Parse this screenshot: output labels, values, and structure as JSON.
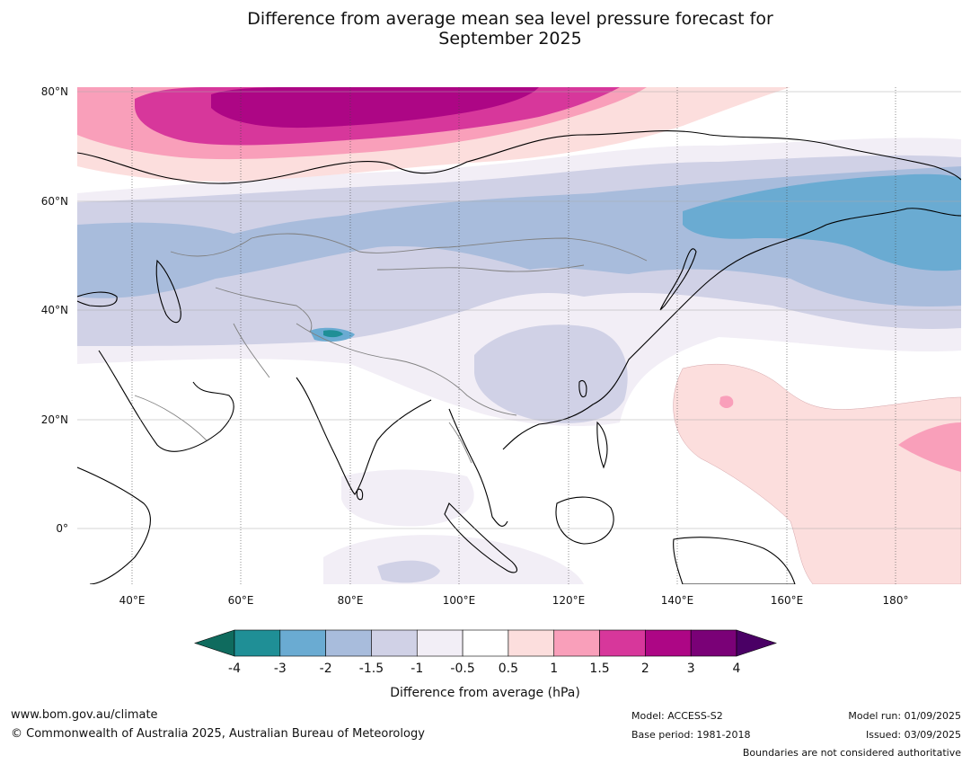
{
  "title": {
    "line1": "Difference from average mean sea level pressure forecast for",
    "line2": "September 2025"
  },
  "map": {
    "lat_labels": [
      "80°N",
      "60°N",
      "40°N",
      "20°N",
      "0°"
    ],
    "lon_labels": [
      "40°E",
      "60°E",
      "80°E",
      "100°E",
      "120°E",
      "140°E",
      "160°E",
      "180°"
    ],
    "extent": {
      "lon": [
        30,
        191
      ],
      "lat": [
        -10,
        81
      ]
    }
  },
  "colorbar": {
    "label": "Difference from average (hPa)",
    "ticks": [
      "-4",
      "-3",
      "-2",
      "-1.5",
      "-1",
      "-0.5",
      "0.5",
      "1",
      "1.5",
      "2",
      "3",
      "4"
    ],
    "colors": {
      "below_min": "#0f6b5e",
      "bins": [
        "#1f8f96",
        "#6aabd2",
        "#a8bcdc",
        "#d0d1e6",
        "#f2eef6",
        "#ffffff",
        "#fcdedd",
        "#f99fba",
        "#d7379b",
        "#ad0685",
        "#7a0177"
      ],
      "above_max": "#4a0065"
    }
  },
  "footer": {
    "website": "www.bom.gov.au/climate",
    "copyright": "© Commonwealth of Australia 2025, Australian Bureau of Meteorology",
    "model": "Model: ACCESS-S2",
    "base_period": "Base period: 1981-2018",
    "model_run": "Model run: 01/09/2025",
    "issued": "Issued: 03/09/2025",
    "disclaimer": "Boundaries are not considered authoritative"
  }
}
